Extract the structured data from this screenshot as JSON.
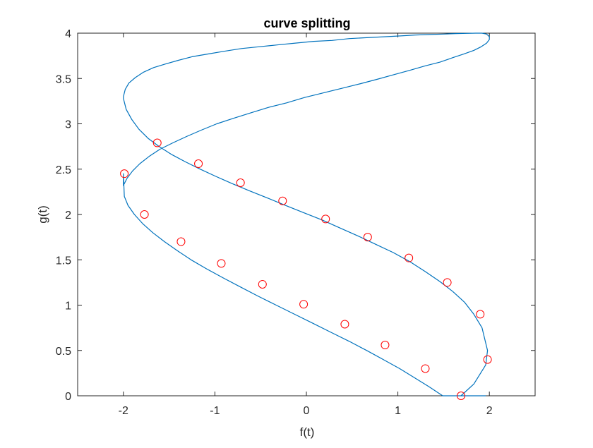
{
  "chart_data": {
    "type": "line",
    "title": "curve splitting",
    "xlabel": "f(t)",
    "ylabel": "g(t)",
    "xlim": [
      -2.5,
      2.5
    ],
    "ylim": [
      0,
      4
    ],
    "xticks": [
      -2,
      -1,
      0,
      1,
      2
    ],
    "yticks": [
      0,
      0.5,
      1,
      1.5,
      2,
      2.5,
      3,
      3.5,
      4
    ],
    "xtick_labels": [
      "-2",
      "-1",
      "0",
      "1",
      "2"
    ],
    "ytick_labels": [
      "0",
      "0.5",
      "1",
      "1.5",
      "2",
      "2.5",
      "3",
      "3.5",
      "4"
    ],
    "grid": false,
    "series": [
      {
        "style": "line",
        "color": "#0072BD",
        "x": [
          1.69,
          1.83,
          1.96,
          1.98,
          1.92,
          1.83,
          1.73,
          1.6,
          1.46,
          1.3,
          1.13,
          0.95,
          0.76,
          0.57,
          0.37,
          0.17,
          -0.03,
          -0.23,
          -0.42,
          -0.62,
          -0.81,
          -0.99,
          -1.16,
          -1.32,
          -1.47,
          -1.61,
          -1.73,
          -1.83,
          -1.91,
          -1.97,
          -2.0,
          -2.0,
          -1.98,
          -1.94,
          -1.87,
          -1.78,
          -1.67,
          -1.54,
          -1.4,
          -1.25,
          -1.08,
          -0.9,
          -0.71,
          -0.52,
          -0.32,
          -0.12,
          0.08,
          0.28,
          0.47,
          0.66,
          0.85,
          1.03,
          1.19,
          1.35,
          1.5,
          1.63,
          1.75,
          1.85,
          1.92,
          1.97,
          2.0,
          2.0,
          1.97,
          1.91,
          1.83,
          1.72,
          1.6,
          1.46,
          1.3,
          1.13,
          0.95,
          0.77,
          0.58,
          0.38,
          0.18,
          -0.02,
          -0.22,
          -0.42,
          -0.61,
          -0.8,
          -0.98,
          -1.15,
          -1.31,
          -1.46,
          -1.6,
          -1.72,
          -1.82,
          -1.9,
          -1.96,
          -2.0,
          -2.0,
          -1.99,
          -1.95,
          -1.88,
          -1.79,
          -1.68,
          -1.55,
          -1.41,
          -1.26,
          -1.09,
          -0.91,
          -0.72,
          -0.53,
          -0.33,
          -0.13,
          0.07,
          0.27,
          0.47,
          0.66,
          0.84,
          1.02,
          1.18,
          1.34,
          1.49,
          1.62,
          1.74,
          1.84,
          1.91,
          1.96
        ],
        "y": [
          0.0,
          0.13,
          0.34,
          0.5,
          0.75,
          0.9,
          1.03,
          1.15,
          1.26,
          1.37,
          1.48,
          1.58,
          1.67,
          1.76,
          1.85,
          1.94,
          2.02,
          2.1,
          2.18,
          2.26,
          2.34,
          2.42,
          2.5,
          2.58,
          2.66,
          2.75,
          2.84,
          2.94,
          3.05,
          3.16,
          3.28,
          3.3,
          3.38,
          3.45,
          3.51,
          3.57,
          3.62,
          3.66,
          3.7,
          3.74,
          3.77,
          3.8,
          3.83,
          3.85,
          3.87,
          3.89,
          3.91,
          3.92,
          3.94,
          3.95,
          3.96,
          3.97,
          3.98,
          3.985,
          3.99,
          3.995,
          3.998,
          4.0,
          4.0,
          3.99,
          3.96,
          3.93,
          3.89,
          3.85,
          3.81,
          3.77,
          3.73,
          3.68,
          3.64,
          3.59,
          3.54,
          3.49,
          3.44,
          3.39,
          3.34,
          3.29,
          3.23,
          3.18,
          3.12,
          3.06,
          3.0,
          2.93,
          2.86,
          2.79,
          2.72,
          2.64,
          2.56,
          2.48,
          2.4,
          2.32,
          2.45,
          2.2,
          2.1,
          2.0,
          1.9,
          1.8,
          1.7,
          1.6,
          1.5,
          1.4,
          1.3,
          1.2,
          1.1,
          1.0,
          0.9,
          0.8,
          0.7,
          0.6,
          0.5,
          0.4,
          0.3,
          0.2,
          0.1,
          0.0,
          0.0,
          0.0,
          0.0,
          0.0,
          0.0
        ]
      },
      {
        "style": "markers",
        "marker": "circle",
        "color": "#FF0000",
        "x": [
          1.69,
          1.3,
          0.86,
          0.42,
          -0.03,
          -0.48,
          -0.93,
          -1.37,
          -1.77,
          -1.99,
          -1.63,
          -1.18,
          -0.72,
          -0.26,
          0.21,
          0.67,
          1.12,
          1.54,
          1.9,
          1.98
        ],
        "y": [
          0.0,
          0.3,
          0.56,
          0.79,
          1.01,
          1.23,
          1.46,
          1.7,
          2.0,
          2.45,
          2.79,
          2.56,
          2.35,
          2.15,
          1.95,
          1.75,
          1.52,
          1.25,
          0.9,
          0.4
        ]
      }
    ]
  }
}
